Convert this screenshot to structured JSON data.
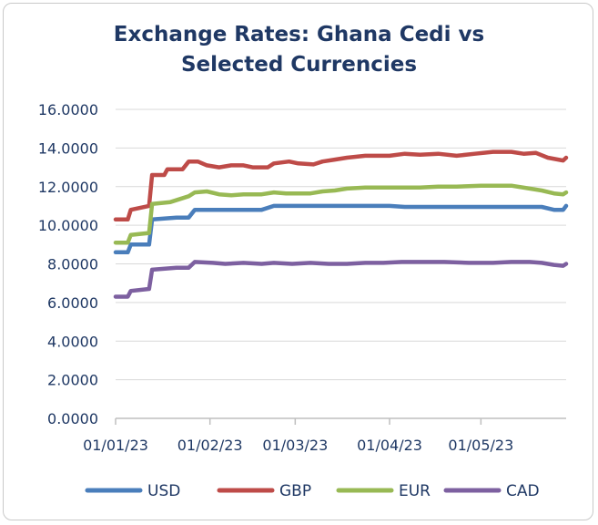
{
  "chart_data": {
    "type": "line",
    "title_line1": "Exchange Rates: Ghana Cedi vs",
    "title_line2": "Selected Currencies",
    "xlabel": "",
    "ylabel": "",
    "ylim": [
      0,
      16
    ],
    "yticks": [
      "0.0000",
      "2.0000",
      "4.0000",
      "6.0000",
      "8.0000",
      "10.0000",
      "12.0000",
      "14.0000",
      "16.0000"
    ],
    "xticks": [
      {
        "label": "01/01/23",
        "day": 0
      },
      {
        "label": "01/02/23",
        "day": 31
      },
      {
        "label": "01/03/23",
        "day": 59
      },
      {
        "label": "01/04/23",
        "day": 90
      },
      {
        "label": "01/05/23",
        "day": 120
      }
    ],
    "xlim_days": [
      0,
      148
    ],
    "series": [
      {
        "name": "USD",
        "color": "#4a7ebb",
        "points": [
          [
            0,
            8.6
          ],
          [
            4,
            8.6
          ],
          [
            5,
            9.0
          ],
          [
            11,
            9.0
          ],
          [
            12,
            10.3
          ],
          [
            20,
            10.4
          ],
          [
            24,
            10.4
          ],
          [
            26,
            10.8
          ],
          [
            38,
            10.8
          ],
          [
            48,
            10.8
          ],
          [
            52,
            11.0
          ],
          [
            65,
            11.0
          ],
          [
            80,
            11.0
          ],
          [
            90,
            11.0
          ],
          [
            95,
            10.95
          ],
          [
            105,
            10.95
          ],
          [
            120,
            10.95
          ],
          [
            140,
            10.95
          ],
          [
            144,
            10.8
          ],
          [
            147,
            10.8
          ],
          [
            148,
            11.0
          ]
        ]
      },
      {
        "name": "GBP",
        "color": "#be4b48",
        "points": [
          [
            0,
            10.3
          ],
          [
            4,
            10.3
          ],
          [
            5,
            10.8
          ],
          [
            11,
            11.0
          ],
          [
            12,
            12.6
          ],
          [
            16,
            12.6
          ],
          [
            17,
            12.9
          ],
          [
            22,
            12.9
          ],
          [
            24,
            13.3
          ],
          [
            27,
            13.3
          ],
          [
            30,
            13.1
          ],
          [
            34,
            13.0
          ],
          [
            38,
            13.1
          ],
          [
            42,
            13.1
          ],
          [
            45,
            13.0
          ],
          [
            50,
            13.0
          ],
          [
            52,
            13.2
          ],
          [
            57,
            13.3
          ],
          [
            60,
            13.2
          ],
          [
            65,
            13.15
          ],
          [
            68,
            13.3
          ],
          [
            72,
            13.4
          ],
          [
            76,
            13.5
          ],
          [
            82,
            13.6
          ],
          [
            90,
            13.6
          ],
          [
            95,
            13.7
          ],
          [
            100,
            13.65
          ],
          [
            106,
            13.7
          ],
          [
            112,
            13.6
          ],
          [
            118,
            13.7
          ],
          [
            124,
            13.8
          ],
          [
            130,
            13.8
          ],
          [
            134,
            13.7
          ],
          [
            138,
            13.75
          ],
          [
            142,
            13.5
          ],
          [
            147,
            13.35
          ],
          [
            148,
            13.5
          ]
        ]
      },
      {
        "name": "EUR",
        "color": "#98b954",
        "points": [
          [
            0,
            9.1
          ],
          [
            4,
            9.1
          ],
          [
            5,
            9.5
          ],
          [
            11,
            9.6
          ],
          [
            12,
            11.1
          ],
          [
            18,
            11.2
          ],
          [
            24,
            11.5
          ],
          [
            26,
            11.7
          ],
          [
            30,
            11.75
          ],
          [
            34,
            11.6
          ],
          [
            38,
            11.55
          ],
          [
            42,
            11.6
          ],
          [
            48,
            11.6
          ],
          [
            52,
            11.7
          ],
          [
            56,
            11.65
          ],
          [
            64,
            11.65
          ],
          [
            68,
            11.75
          ],
          [
            72,
            11.8
          ],
          [
            76,
            11.9
          ],
          [
            82,
            11.95
          ],
          [
            90,
            11.95
          ],
          [
            100,
            11.95
          ],
          [
            106,
            12.0
          ],
          [
            112,
            12.0
          ],
          [
            120,
            12.05
          ],
          [
            130,
            12.05
          ],
          [
            136,
            11.9
          ],
          [
            140,
            11.8
          ],
          [
            144,
            11.65
          ],
          [
            147,
            11.6
          ],
          [
            148,
            11.7
          ]
        ]
      },
      {
        "name": "CAD",
        "color": "#7d60a0",
        "points": [
          [
            0,
            6.3
          ],
          [
            4,
            6.3
          ],
          [
            5,
            6.6
          ],
          [
            11,
            6.7
          ],
          [
            12,
            7.7
          ],
          [
            20,
            7.8
          ],
          [
            24,
            7.8
          ],
          [
            26,
            8.1
          ],
          [
            32,
            8.05
          ],
          [
            36,
            8.0
          ],
          [
            42,
            8.05
          ],
          [
            48,
            8.0
          ],
          [
            52,
            8.05
          ],
          [
            58,
            8.0
          ],
          [
            64,
            8.05
          ],
          [
            70,
            8.0
          ],
          [
            76,
            8.0
          ],
          [
            82,
            8.05
          ],
          [
            88,
            8.05
          ],
          [
            94,
            8.1
          ],
          [
            100,
            8.1
          ],
          [
            108,
            8.1
          ],
          [
            116,
            8.05
          ],
          [
            124,
            8.05
          ],
          [
            130,
            8.1
          ],
          [
            136,
            8.1
          ],
          [
            140,
            8.05
          ],
          [
            144,
            7.95
          ],
          [
            147,
            7.9
          ],
          [
            148,
            8.0
          ]
        ]
      }
    ],
    "legend_position": "bottom"
  }
}
